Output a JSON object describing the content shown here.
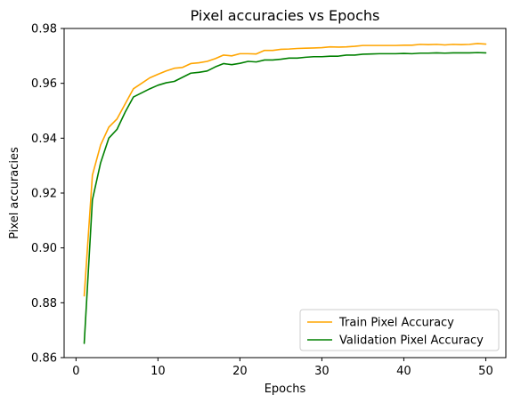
{
  "chart_data": {
    "type": "line",
    "title": "Pixel accuracies vs Epochs",
    "xlabel": "Epochs",
    "ylabel": "Pixel accuracies",
    "xlim": [
      -1.45,
      52.45
    ],
    "ylim": [
      0.86,
      0.98
    ],
    "xticks": [
      0,
      10,
      20,
      30,
      40,
      50
    ],
    "yticks": [
      0.86,
      0.88,
      0.9,
      0.92,
      0.94,
      0.96,
      0.98
    ],
    "ytick_labels": [
      "0.86",
      "0.88",
      "0.90",
      "0.92",
      "0.94",
      "0.96",
      "0.98"
    ],
    "grid": false,
    "legend_position": "lower-right",
    "x": [
      1,
      2,
      3,
      4,
      5,
      6,
      7,
      8,
      9,
      10,
      11,
      12,
      13,
      14,
      15,
      16,
      17,
      18,
      19,
      20,
      21,
      22,
      23,
      24,
      25,
      26,
      27,
      28,
      29,
      30,
      31,
      32,
      33,
      34,
      35,
      36,
      37,
      38,
      39,
      40,
      41,
      42,
      43,
      44,
      45,
      46,
      47,
      48,
      49,
      50
    ],
    "series": [
      {
        "name": "Train Pixel Accuracy",
        "color": "#ffa500",
        "values": [
          0.8825,
          0.9265,
          0.9375,
          0.944,
          0.947,
          0.9525,
          0.958,
          0.96,
          0.962,
          0.9633,
          0.9645,
          0.9655,
          0.9658,
          0.9672,
          0.9675,
          0.968,
          0.969,
          0.9703,
          0.97,
          0.9708,
          0.9708,
          0.9707,
          0.972,
          0.972,
          0.9724,
          0.9725,
          0.9727,
          0.9728,
          0.9729,
          0.973,
          0.9733,
          0.9732,
          0.9733,
          0.9735,
          0.9738,
          0.9738,
          0.9738,
          0.9738,
          0.9738,
          0.9739,
          0.9739,
          0.9742,
          0.9741,
          0.9742,
          0.974,
          0.9742,
          0.9741,
          0.9742,
          0.9745,
          0.9743
        ]
      },
      {
        "name": "Validation Pixel Accuracy",
        "color": "#008000",
        "values": [
          0.8652,
          0.9175,
          0.931,
          0.94,
          0.9432,
          0.9495,
          0.955,
          0.9565,
          0.958,
          0.9593,
          0.9602,
          0.9607,
          0.9622,
          0.9637,
          0.964,
          0.9645,
          0.966,
          0.9672,
          0.9668,
          0.9673,
          0.968,
          0.9678,
          0.9685,
          0.9685,
          0.9688,
          0.9692,
          0.9692,
          0.9695,
          0.9697,
          0.9697,
          0.9699,
          0.9699,
          0.9703,
          0.9703,
          0.9706,
          0.9707,
          0.9708,
          0.9708,
          0.9708,
          0.9709,
          0.9708,
          0.971,
          0.971,
          0.9711,
          0.971,
          0.9711,
          0.9711,
          0.9711,
          0.9712,
          0.9711
        ]
      }
    ]
  }
}
